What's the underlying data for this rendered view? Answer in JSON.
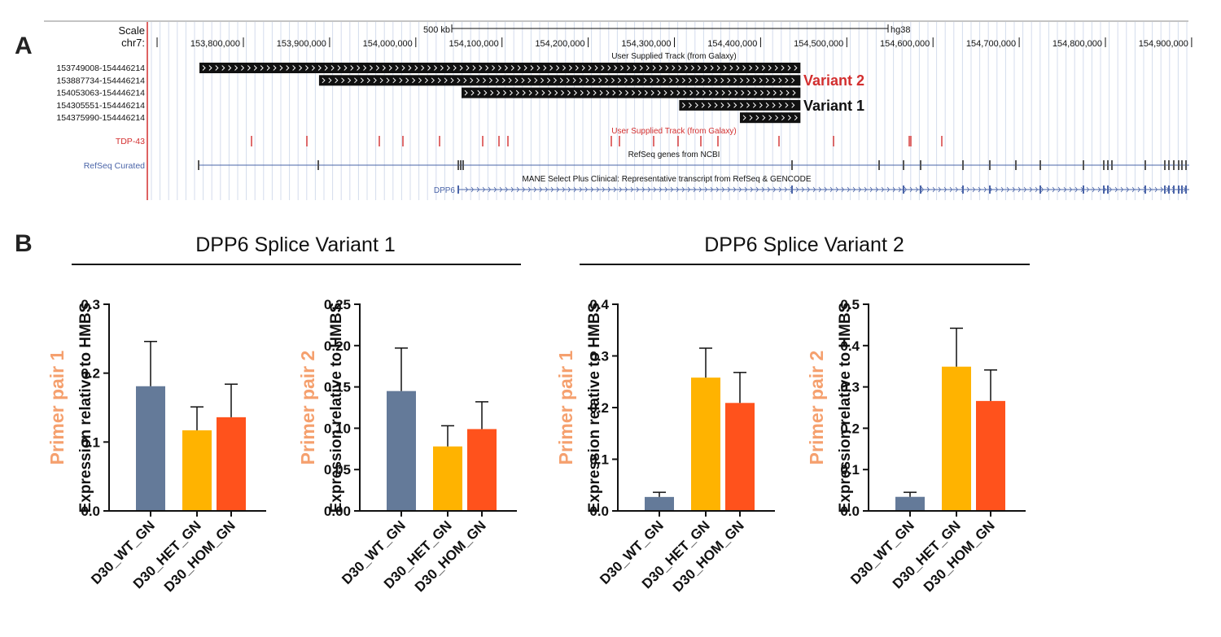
{
  "panel_a": {
    "letter": "A",
    "scale_label": "Scale",
    "chr_label": "chr7:",
    "scale_bar": "500 kb",
    "assembly": "hg38",
    "positions": [
      "153,800,000",
      "153,900,000",
      "154,000,000",
      "154,100,000",
      "154,200,000",
      "154,300,000",
      "154,400,000",
      "154,500,000",
      "154,600,000",
      "154,700,000",
      "154,800,000",
      "154,900,000"
    ],
    "galaxy_track_title": "User Supplied Track (from Galaxy)",
    "regions": [
      {
        "label": "153749008-154446214",
        "start": 153749008,
        "end": 154446214
      },
      {
        "label": "153887734-154446214",
        "start": 153887734,
        "end": 154446214
      },
      {
        "label": "154053063-154446214",
        "start": 154053063,
        "end": 154446214
      },
      {
        "label": "154305551-154446214",
        "start": 154305551,
        "end": 154446214
      },
      {
        "label": "154375990-154446214",
        "start": 154375990,
        "end": 154446214
      }
    ],
    "variant_2_label": "Variant 2",
    "variant_1_label": "Variant 1",
    "tdp43_label": "TDP-43",
    "tdp43_track_title": "User Supplied Track (from Galaxy)",
    "refseq_label": "RefSeq Curated",
    "refseq_title": "RefSeq genes from NCBI",
    "mane_title": "MANE Select Plus Clinical: Representative transcript from RefSeq & GENCODE",
    "gene_label": "DPP6",
    "colors": {
      "red": "#d32f2f",
      "blue": "#4a64a8",
      "dark": "#111111"
    }
  },
  "panel_b": {
    "letter": "B",
    "group_1_title": "DPP6 Splice Variant 1",
    "group_2_title": "DPP6 Splice Variant 2",
    "bar_colors": [
      "#647a99",
      "#ffb300",
      "#ff521c"
    ],
    "primer_color": "#f5a06e"
  },
  "chart_data": [
    {
      "type": "bar",
      "side_label": "Primer pair 1",
      "ylabel": "Expression relative to HMBS",
      "categories": [
        "D30_WT_GN",
        "D30_HET_GN",
        "D30_HOM_GN"
      ],
      "values": [
        0.181,
        0.117,
        0.136
      ],
      "errors": [
        0.065,
        0.034,
        0.048
      ],
      "ylim": [
        0,
        0.3
      ],
      "yticks": [
        "0.0",
        "0.1",
        "0.2",
        "0.3"
      ]
    },
    {
      "type": "bar",
      "side_label": "Primer pair 2",
      "ylabel": "Expression relative to HMBS",
      "categories": [
        "D30_WT_GN",
        "D30_HET_GN",
        "D30_HOM_GN"
      ],
      "values": [
        0.145,
        0.078,
        0.099
      ],
      "errors": [
        0.052,
        0.025,
        0.033
      ],
      "ylim": [
        0,
        0.25
      ],
      "yticks": [
        "0.00",
        "0.05",
        "0.10",
        "0.15",
        "0.20",
        "0.25"
      ]
    },
    {
      "type": "bar",
      "side_label": "Primer pair 1",
      "ylabel": "Expression relative to HMBS",
      "categories": [
        "D30_WT_GN",
        "D30_HET_GN",
        "D30_HOM_GN"
      ],
      "values": [
        0.027,
        0.258,
        0.209
      ],
      "errors": [
        0.009,
        0.057,
        0.059
      ],
      "ylim": [
        0,
        0.4
      ],
      "yticks": [
        "0.0",
        "0.1",
        "0.2",
        "0.3",
        "0.4"
      ]
    },
    {
      "type": "bar",
      "side_label": "Primer pair 2",
      "ylabel": "Expression relative to HMBS",
      "categories": [
        "D30_WT_GN",
        "D30_HET_GN",
        "D30_HOM_GN"
      ],
      "values": [
        0.034,
        0.349,
        0.266
      ],
      "errors": [
        0.011,
        0.093,
        0.075
      ],
      "ylim": [
        0,
        0.5
      ],
      "yticks": [
        "0.0",
        "0.1",
        "0.2",
        "0.3",
        "0.4",
        "0.5"
      ]
    }
  ]
}
